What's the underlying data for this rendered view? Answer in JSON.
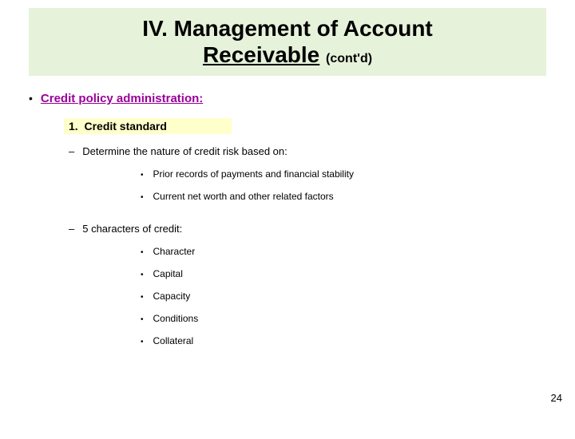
{
  "title": {
    "line1": "IV. Management of Account",
    "line2_underlined": "Receivable",
    "contd": "(cont'd)",
    "bg_color": "#e6f2da",
    "font_size_main": 28,
    "font_size_contd": 16
  },
  "level1": {
    "bullet": "•",
    "text": "Credit policy administration:",
    "color": "#990099"
  },
  "level2": {
    "number": "1.",
    "text": "Credit standard",
    "bg_color": "#ffffcc"
  },
  "section_a": {
    "dash": "–",
    "text": "Determine the nature of credit risk based on:",
    "items": [
      "Prior records of payments and financial stability",
      "Current net worth and other related factors"
    ]
  },
  "section_b": {
    "dash": "–",
    "text": "5 characters of credit:",
    "items": [
      "Character",
      "Capital",
      "Capacity",
      "Conditions",
      "Collateral"
    ]
  },
  "bullet_small": "•",
  "page_number": "24"
}
